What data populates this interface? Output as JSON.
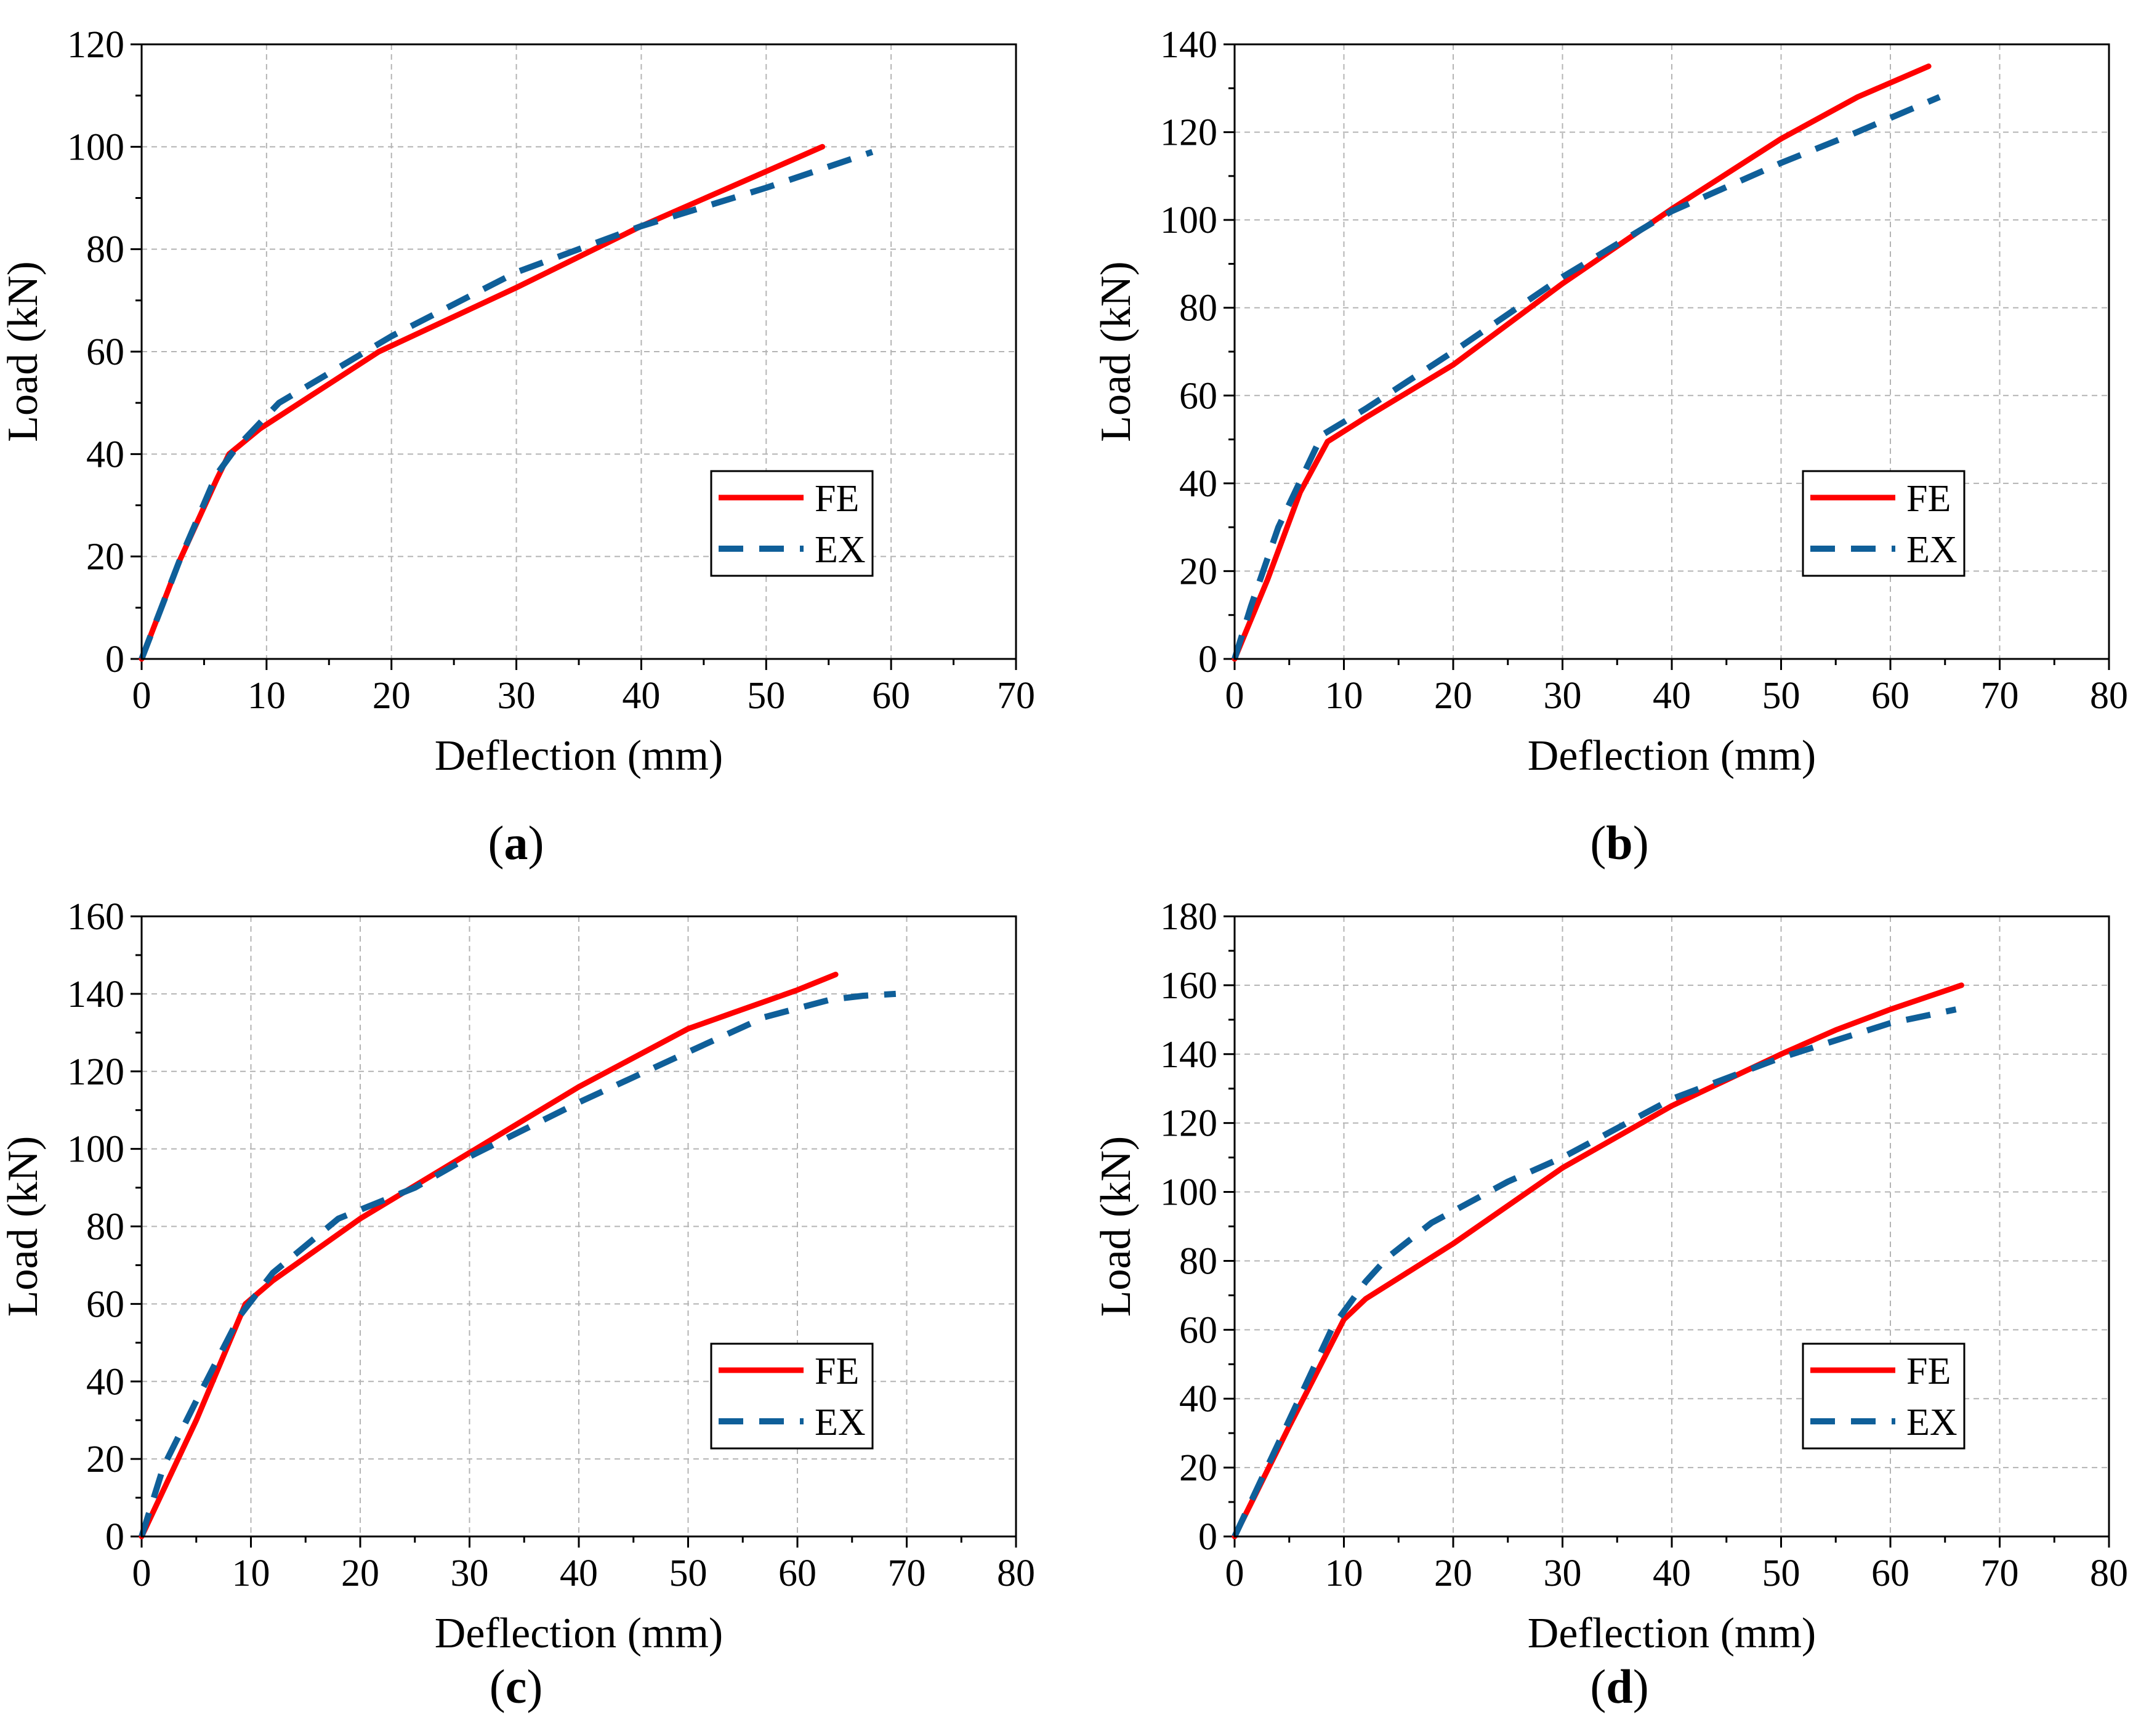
{
  "figure": {
    "captions": [
      "a",
      "b",
      "c",
      "d"
    ]
  },
  "colors": {
    "fe": "#ff0000",
    "ex": "#0f5f99"
  },
  "chart_data": [
    {
      "id": "a",
      "type": "line",
      "title": "",
      "xlabel": "Deflection (mm)",
      "ylabel": "Load (kN)",
      "xlim": [
        0,
        70
      ],
      "ylim": [
        0,
        120
      ],
      "xticks": [
        0,
        10,
        20,
        30,
        40,
        50,
        60,
        70
      ],
      "yticks": [
        0,
        20,
        40,
        60,
        80,
        100,
        120
      ],
      "grid": true,
      "legend_position": "middle-right",
      "series": [
        {
          "name": "FE",
          "style": "solid",
          "x": [
            0,
            3,
            6,
            7,
            9.5,
            19,
            30,
            40,
            54.5
          ],
          "y": [
            0,
            19,
            35,
            40,
            45,
            60,
            72.5,
            84.5,
            100
          ]
        },
        {
          "name": "EX",
          "style": "dashed",
          "x": [
            0,
            3,
            6,
            7.5,
            11,
            20,
            30,
            40,
            50,
            58.5
          ],
          "y": [
            0,
            19,
            36,
            41,
            50,
            63,
            75.5,
            84.5,
            92,
            99
          ]
        }
      ]
    },
    {
      "id": "b",
      "type": "line",
      "title": "",
      "xlabel": "Deflection (mm)",
      "ylabel": "Load (kN)",
      "xlim": [
        0,
        80
      ],
      "ylim": [
        0,
        140
      ],
      "xticks": [
        0,
        10,
        20,
        30,
        40,
        50,
        60,
        70,
        80
      ],
      "yticks": [
        0,
        20,
        40,
        60,
        80,
        100,
        120,
        140
      ],
      "grid": true,
      "legend_position": "middle-right",
      "series": [
        {
          "name": "FE",
          "style": "solid",
          "x": [
            0,
            3,
            6,
            8.5,
            12,
            20,
            30,
            40,
            50,
            57,
            63.5
          ],
          "y": [
            0,
            18,
            38,
            49.5,
            55,
            67,
            85.5,
            102.5,
            118.5,
            128,
            135
          ]
        },
        {
          "name": "EX",
          "style": "dashed",
          "x": [
            0,
            1.5,
            4,
            8,
            12,
            20,
            30,
            40,
            50,
            56,
            64.5
          ],
          "y": [
            0,
            12,
            30,
            51,
            57,
            70,
            87,
            102,
            113,
            119,
            128
          ]
        }
      ]
    },
    {
      "id": "c",
      "type": "line",
      "title": "",
      "xlabel": "Deflection (mm)",
      "ylabel": "Load (kN)",
      "xlim": [
        0,
        80
      ],
      "ylim": [
        0,
        160
      ],
      "xticks": [
        0,
        10,
        20,
        30,
        40,
        50,
        60,
        70,
        80
      ],
      "yticks": [
        0,
        20,
        40,
        60,
        80,
        100,
        120,
        140,
        160
      ],
      "grid": true,
      "legend_position": "bottom-right",
      "series": [
        {
          "name": "FE",
          "style": "solid",
          "x": [
            0,
            5,
            9.5,
            12,
            14,
            20,
            30,
            40,
            50,
            54,
            60,
            63.5
          ],
          "y": [
            0,
            30,
            60,
            66,
            70,
            82,
            99,
            116,
            131,
            135,
            141,
            145
          ]
        },
        {
          "name": "EX",
          "style": "dashed",
          "x": [
            0,
            2,
            5,
            9,
            12,
            18,
            25,
            30,
            40,
            50,
            57,
            63,
            66,
            69
          ],
          "y": [
            0,
            18,
            35,
            57,
            68,
            82,
            90,
            98,
            112,
            125,
            134,
            138.5,
            139.5,
            140
          ]
        }
      ]
    },
    {
      "id": "d",
      "type": "line",
      "title": "",
      "xlabel": "Deflection (mm)",
      "ylabel": "Load (kN)",
      "xlim": [
        0,
        80
      ],
      "ylim": [
        0,
        180
      ],
      "xticks": [
        0,
        10,
        20,
        30,
        40,
        50,
        60,
        70,
        80
      ],
      "yticks": [
        0,
        20,
        40,
        60,
        80,
        100,
        120,
        140,
        160,
        180
      ],
      "grid": true,
      "legend_position": "bottom-right",
      "series": [
        {
          "name": "FE",
          "style": "solid",
          "x": [
            0,
            5,
            10,
            12,
            15,
            20,
            30,
            40,
            50,
            55,
            60,
            66.5
          ],
          "y": [
            0,
            32,
            63,
            69,
            75,
            85,
            107,
            125,
            140,
            147,
            153,
            160
          ]
        },
        {
          "name": "EX",
          "style": "dashed",
          "x": [
            0,
            4,
            9,
            12,
            14,
            18,
            25,
            30,
            40,
            50,
            60,
            66
          ],
          "y": [
            0,
            27,
            61,
            74,
            81,
            91,
            103,
            110,
            127,
            139,
            149,
            153
          ]
        }
      ]
    }
  ]
}
